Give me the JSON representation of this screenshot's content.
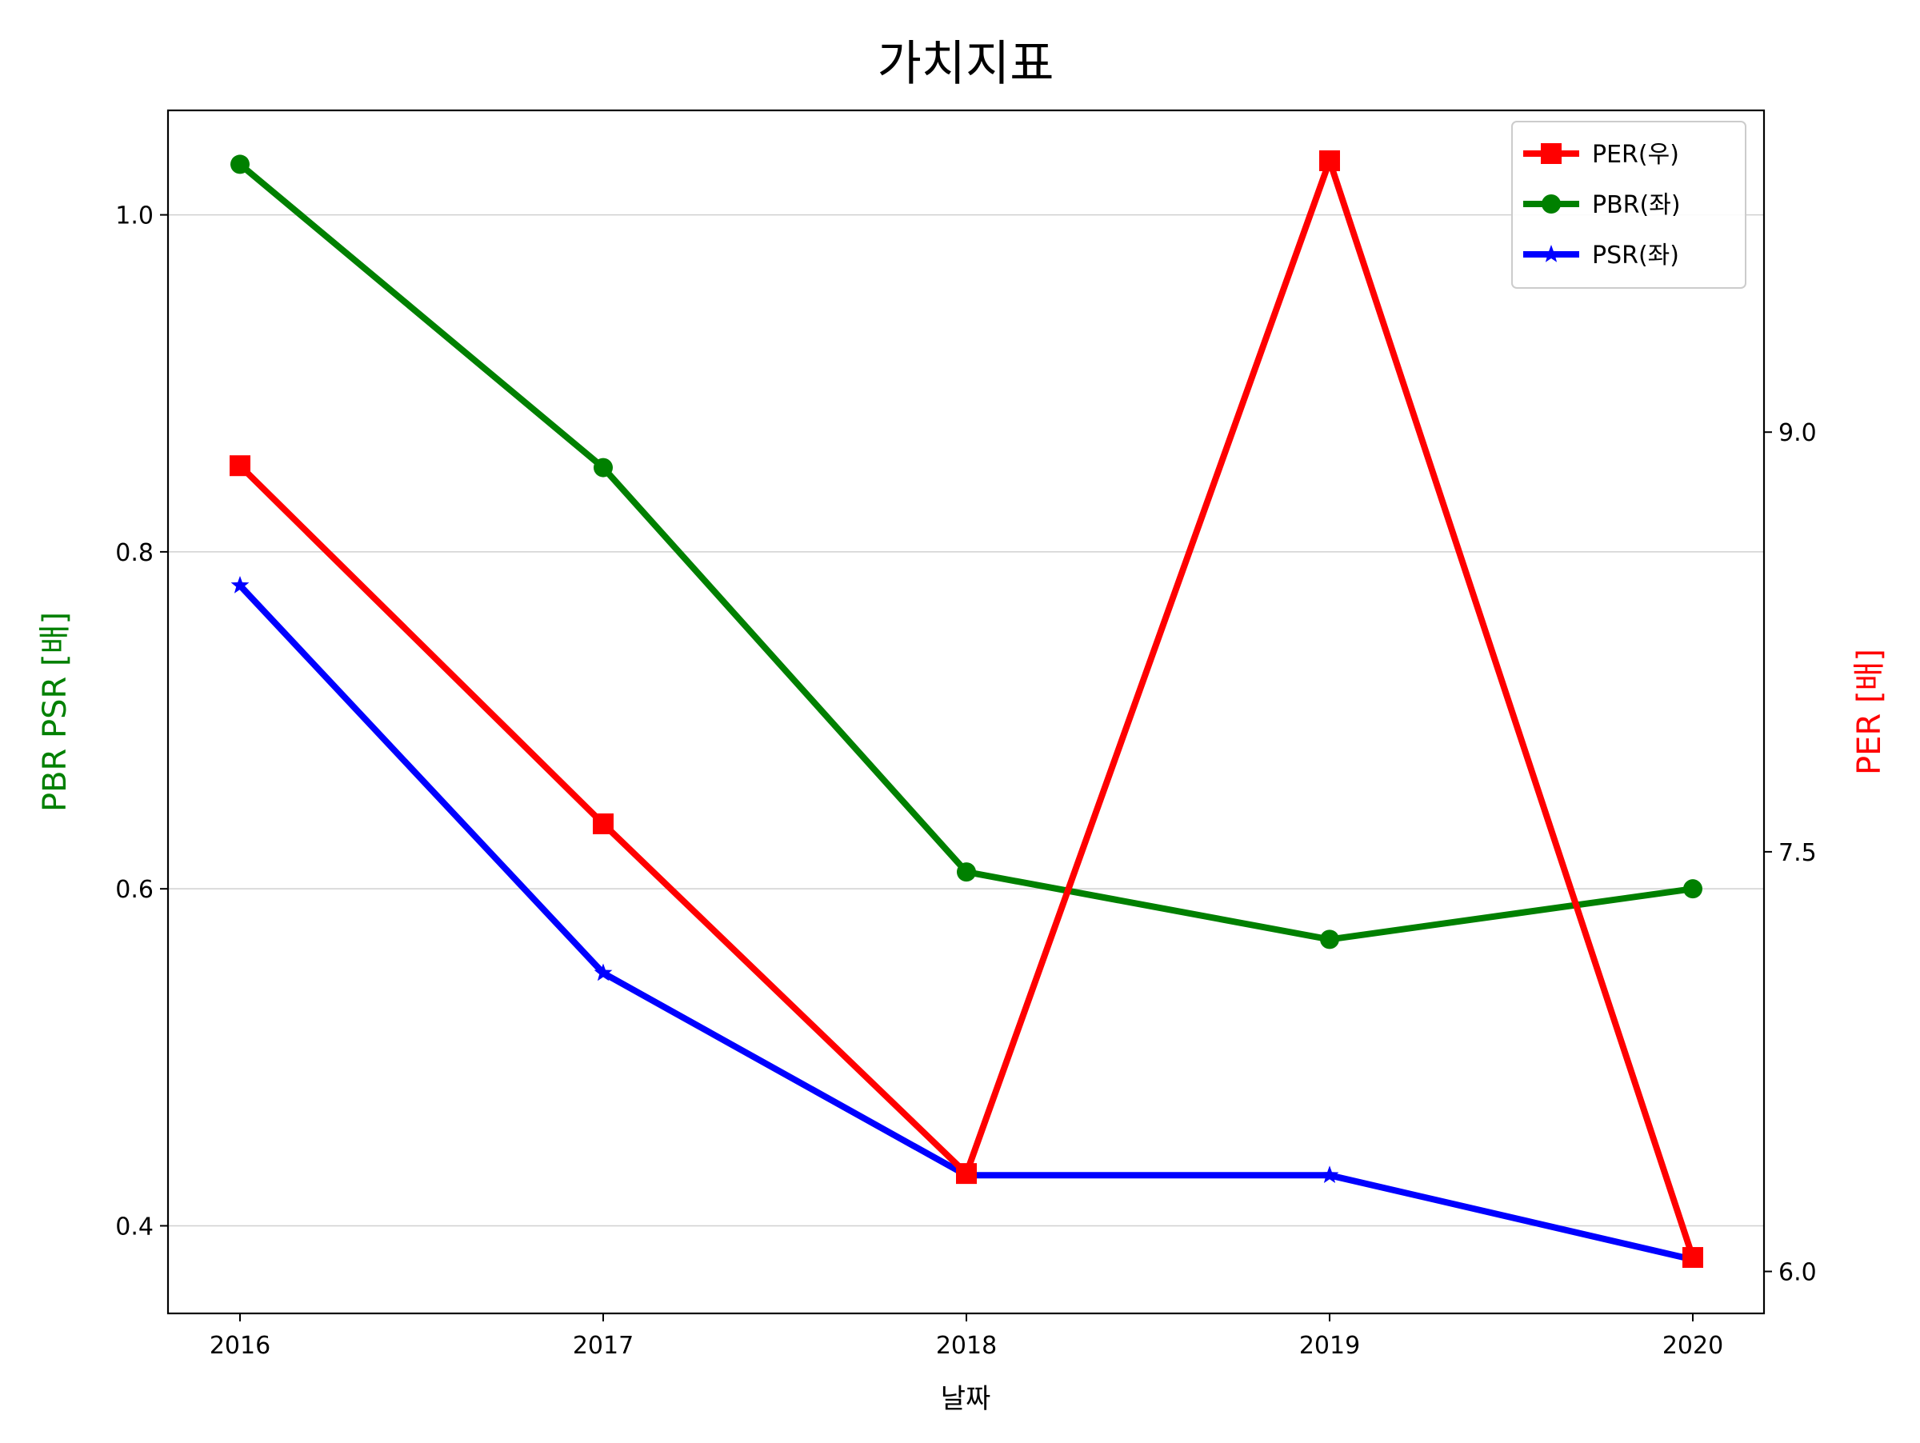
{
  "chart_data": {
    "type": "line",
    "title": "가치지표",
    "xlabel": "날짜",
    "ylabel_left": "PBR PSR [배]",
    "ylabel_right": "PER [배]",
    "categories": [
      "2016",
      "2017",
      "2018",
      "2019",
      "2020"
    ],
    "y_left": {
      "range": [
        0.348,
        1.062
      ],
      "ticks": [
        0.4,
        0.6,
        0.8,
        1.0
      ],
      "tick_labels": [
        "0.4",
        "0.6",
        "0.8",
        "1.0"
      ]
    },
    "y_right": {
      "range": [
        5.85,
        10.15
      ],
      "ticks": [
        6.0,
        7.5,
        9.0
      ],
      "tick_labels": [
        "6.0",
        "7.5",
        "9.0"
      ]
    },
    "grid": "horizontal",
    "legend_position": "top-right",
    "series": [
      {
        "name": "PER(우)",
        "axis": "right",
        "color": "#ff0000",
        "marker": "square",
        "values": [
          8.88,
          7.6,
          6.35,
          9.97,
          6.05
        ]
      },
      {
        "name": "PBR(좌)",
        "axis": "left",
        "color": "#008000",
        "marker": "circle",
        "values": [
          1.03,
          0.85,
          0.61,
          0.57,
          0.6
        ]
      },
      {
        "name": "PSR(좌)",
        "axis": "left",
        "color": "#0000ff",
        "marker": "star",
        "values": [
          0.78,
          0.55,
          0.43,
          0.43,
          0.38
        ]
      }
    ]
  }
}
